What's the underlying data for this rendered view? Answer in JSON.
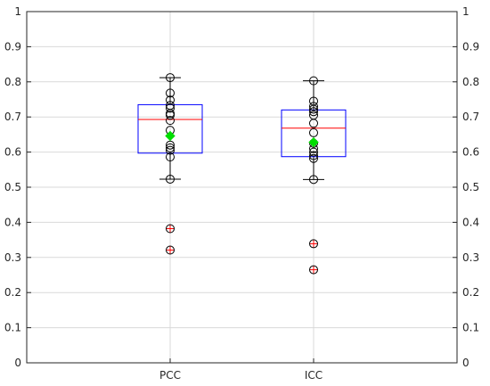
{
  "chart_data": {
    "type": "box",
    "title": "",
    "xlabel": "",
    "ylabel": "",
    "ylim": [
      0,
      1
    ],
    "yticks": [
      "0",
      "0.1",
      "0.2",
      "0.3",
      "0.4",
      "0.5",
      "0.6",
      "0.7",
      "0.8",
      "0.9",
      "1"
    ],
    "grid": true,
    "right_axis_mirror": true,
    "colors": {
      "box": "#0000ff",
      "median": "#ff0000",
      "whisker": "#000000",
      "points": "#000000",
      "outlier": "#ff0000",
      "mean": "#00dd00",
      "grid": "#d9d9d9",
      "axis": "#262626"
    },
    "categories": [
      "PCC",
      "ICC"
    ],
    "boxes": [
      {
        "label": "PCC",
        "whisker_low": 0.523,
        "q1": 0.597,
        "median": 0.693,
        "q3": 0.735,
        "whisker_high": 0.812,
        "mean": 0.646,
        "points": [
          0.812,
          0.768,
          0.748,
          0.733,
          0.725,
          0.71,
          0.705,
          0.69,
          0.662,
          0.62,
          0.612,
          0.605,
          0.586,
          0.523,
          0.382,
          0.321
        ],
        "outliers": [
          0.382,
          0.321
        ]
      },
      {
        "label": "ICC",
        "whisker_low": 0.522,
        "q1": 0.587,
        "median": 0.668,
        "q3": 0.72,
        "whisker_high": 0.803,
        "mean": 0.628,
        "points": [
          0.803,
          0.745,
          0.73,
          0.722,
          0.715,
          0.705,
          0.682,
          0.655,
          0.625,
          0.61,
          0.6,
          0.59,
          0.582,
          0.522,
          0.339,
          0.265
        ],
        "outliers": [
          0.339,
          0.265
        ]
      }
    ]
  }
}
